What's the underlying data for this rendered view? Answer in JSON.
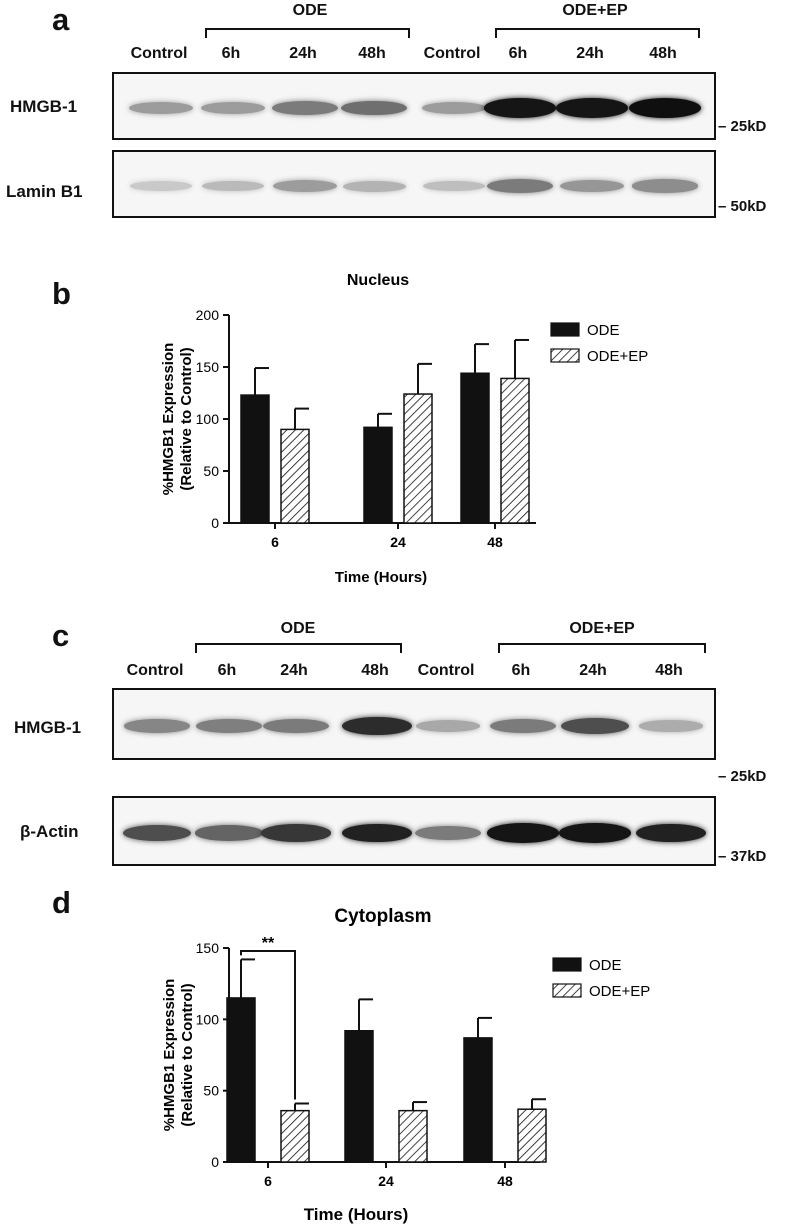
{
  "panel_a": {
    "letter": "a",
    "groups": [
      "ODE",
      "ODE+EP"
    ],
    "lanes": [
      "Control",
      "6h",
      "24h",
      "48h",
      "Control",
      "6h",
      "24h",
      "48h"
    ],
    "rows": [
      {
        "label": "HMGB-1",
        "marker": "25kD",
        "intensities": [
          0.35,
          0.35,
          0.5,
          0.55,
          0.35,
          0.95,
          0.95,
          0.98
        ]
      },
      {
        "label": "Lamin B1",
        "marker": "50kD",
        "intensities": [
          0.15,
          0.22,
          0.35,
          0.25,
          0.2,
          0.5,
          0.38,
          0.42
        ]
      }
    ]
  },
  "panel_c": {
    "letter": "c",
    "groups": [
      "ODE",
      "ODE+EP"
    ],
    "lanes": [
      "Control",
      "6h",
      "24h",
      "48h",
      "Control",
      "6h",
      "24h",
      "48h"
    ],
    "rows": [
      {
        "label": "HMGB-1",
        "marker": "25kD",
        "intensities": [
          0.45,
          0.48,
          0.5,
          0.85,
          0.3,
          0.5,
          0.7,
          0.28
        ]
      },
      {
        "label": "β-Actin",
        "marker": "37kD",
        "intensities": [
          0.7,
          0.6,
          0.8,
          0.9,
          0.5,
          0.95,
          0.95,
          0.9
        ]
      }
    ]
  },
  "chart_data": [
    {
      "panel": "b",
      "type": "bar",
      "title": "Nucleus",
      "xlabel": "Time (Hours)",
      "ylabel": "%HMGB1 Expression (Relative to Control)",
      "categories": [
        "6",
        "24",
        "48"
      ],
      "ylim": [
        0,
        200
      ],
      "yticks": [
        0,
        50,
        100,
        150,
        200
      ],
      "legend": "top-right",
      "series": [
        {
          "name": "ODE",
          "values": [
            123,
            92,
            144
          ],
          "errors": [
            26,
            13,
            28
          ],
          "fill": "solid",
          "color": "#111111"
        },
        {
          "name": "ODE+EP",
          "values": [
            90,
            124,
            139
          ],
          "errors": [
            20,
            29,
            37
          ],
          "fill": "hatched",
          "color": "#111111"
        }
      ],
      "annotations": []
    },
    {
      "panel": "d",
      "type": "bar",
      "title": "Cytoplasm",
      "xlabel": "Time (Hours)",
      "ylabel": "%HMGB1 Expression (Relative to Control)",
      "categories": [
        "6",
        "24",
        "48"
      ],
      "ylim": [
        0,
        150
      ],
      "yticks": [
        0,
        50,
        100,
        150
      ],
      "legend": "top-right",
      "series": [
        {
          "name": "ODE",
          "values": [
            115,
            92,
            87
          ],
          "errors": [
            27,
            22,
            14
          ],
          "fill": "solid",
          "color": "#111111"
        },
        {
          "name": "ODE+EP",
          "values": [
            36,
            36,
            37
          ],
          "errors": [
            5,
            6,
            7
          ],
          "fill": "hatched",
          "color": "#111111"
        }
      ],
      "annotations": [
        {
          "text": "**",
          "between": [
            "ODE",
            "ODE+EP"
          ],
          "category": "6"
        }
      ]
    }
  ]
}
